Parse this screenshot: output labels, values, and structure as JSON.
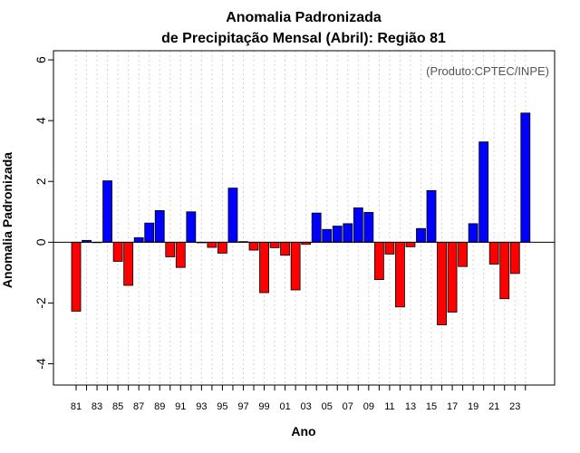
{
  "chart_data": {
    "type": "bar",
    "title": "Anomalia Padronizada",
    "subtitle": "de Precipitação Mensal (Abril): Região 81",
    "xlabel": "Ano",
    "ylabel": "Anomalia Padronizada",
    "annotation": "(Produto:CPTEC/INPE)",
    "ylim": [
      -4.7,
      6.3
    ],
    "yticks": [
      "6",
      "4",
      "2",
      "0",
      "-2",
      "-4"
    ],
    "ytick_values": [
      6,
      4,
      2,
      0,
      -2,
      -4
    ],
    "grid": "vertical dotted",
    "colors": {
      "positive": "#0000ff",
      "negative": "#ff0000",
      "border": "#000000",
      "grid": "#d3d3d3"
    },
    "categories": [
      "81",
      "82",
      "83",
      "84",
      "85",
      "86",
      "87",
      "88",
      "89",
      "90",
      "91",
      "92",
      "93",
      "94",
      "95",
      "96",
      "97",
      "98",
      "99",
      "00",
      "01",
      "02",
      "03",
      "04",
      "05",
      "06",
      "07",
      "08",
      "09",
      "10",
      "11",
      "12",
      "13",
      "14",
      "15",
      "16",
      "17",
      "18",
      "19",
      "20",
      "21",
      "22",
      "23",
      "24"
    ],
    "xtick_labels": [
      "81",
      "83",
      "85",
      "87",
      "89",
      "91",
      "93",
      "95",
      "97",
      "99",
      "01",
      "03",
      "05",
      "07",
      "09",
      "11",
      "13",
      "15",
      "17",
      "19",
      "21",
      "23"
    ],
    "values": [
      -2.27,
      0.06,
      0.0,
      2.02,
      -0.63,
      -1.42,
      0.15,
      0.63,
      1.04,
      -0.48,
      -0.83,
      1.0,
      -0.02,
      -0.17,
      -0.36,
      1.78,
      0.02,
      -0.26,
      -1.66,
      -0.18,
      -0.43,
      -1.57,
      -0.07,
      0.96,
      0.42,
      0.53,
      0.61,
      1.13,
      0.98,
      -1.23,
      -0.39,
      -2.13,
      -0.15,
      0.45,
      1.7,
      -2.72,
      -2.3,
      -0.8,
      0.61,
      3.3,
      -0.72,
      -1.86,
      -1.03,
      4.25
    ]
  }
}
